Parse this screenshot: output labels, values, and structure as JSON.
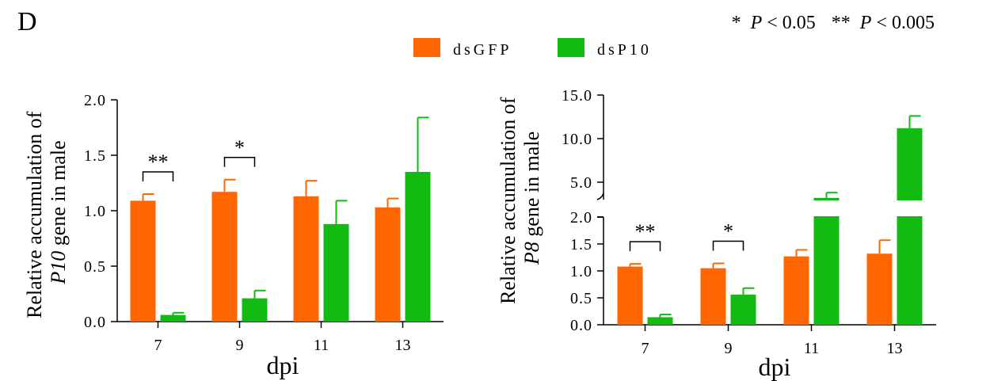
{
  "panel_label": "D",
  "significance_note": "* P < 0.05 ** P < 0.005",
  "significance_note_parts": {
    "one_star": "*",
    "p": "P",
    "lt_05": " < 0.05",
    "two_star": "**",
    "lt_005": " < 0.005"
  },
  "legend": [
    {
      "name": "dsGFP",
      "color": "#FF6600"
    },
    {
      "name": "dsP10",
      "color": "#11BB11"
    }
  ],
  "chart_data": [
    {
      "type": "bar",
      "ylabel": "Relative accumulation of P10 gene in male",
      "ylabel_lines": [
        "Relative accumulation of",
        "P10",
        " gene in male"
      ],
      "xlabel": "dpi",
      "categories": [
        "7",
        "9",
        "11",
        "13"
      ],
      "ylim": [
        0,
        2.0
      ],
      "yticks": [
        "0.0",
        "0.5",
        "1.0",
        "1.5",
        "2.0"
      ],
      "series": [
        {
          "name": "dsGFP",
          "color": "#FF6600",
          "values": [
            1.09,
            1.17,
            1.13,
            1.03
          ],
          "errors": [
            0.06,
            0.11,
            0.14,
            0.08
          ]
        },
        {
          "name": "dsP10",
          "color": "#11BB11",
          "values": [
            0.06,
            0.21,
            0.88,
            1.35
          ],
          "errors": [
            0.02,
            0.07,
            0.21,
            0.49
          ]
        }
      ],
      "significance": [
        {
          "category": "7",
          "label": "**"
        },
        {
          "category": "9",
          "label": "*"
        }
      ]
    },
    {
      "type": "bar",
      "ylabel": "Relative accumulation of P8 gene in male",
      "ylabel_lines": [
        "Relative accumulation of",
        "P8",
        " gene in male"
      ],
      "xlabel": "dpi",
      "categories": [
        "7",
        "9",
        "11",
        "13"
      ],
      "ylim": [
        0,
        15.0
      ],
      "axis_break": [
        2.0,
        3.0
      ],
      "yticks_lower": [
        "0.0",
        "0.5",
        "1.0",
        "1.5",
        "2.0"
      ],
      "yticks_upper": [
        "5.0",
        "10.0",
        "15.0"
      ],
      "series": [
        {
          "name": "dsGFP",
          "color": "#FF6600",
          "values": [
            1.08,
            1.05,
            1.27,
            1.32
          ],
          "errors": [
            0.05,
            0.09,
            0.12,
            0.25
          ]
        },
        {
          "name": "dsP10",
          "color": "#11BB11",
          "values": [
            0.14,
            0.56,
            3.2,
            11.2
          ],
          "errors": [
            0.05,
            0.12,
            0.6,
            1.4
          ]
        }
      ],
      "significance": [
        {
          "category": "7",
          "label": "**"
        },
        {
          "category": "9",
          "label": "*"
        }
      ]
    }
  ]
}
